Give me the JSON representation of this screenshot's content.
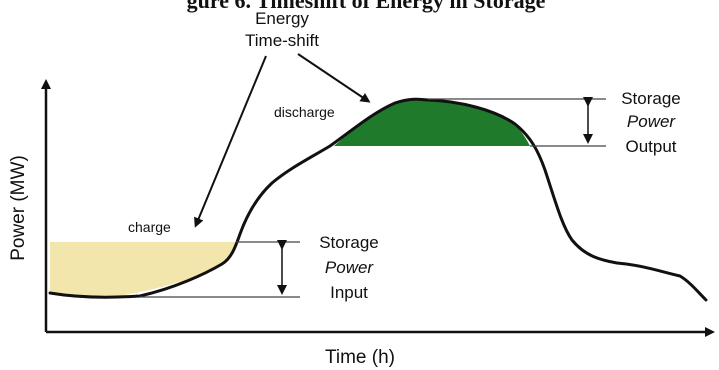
{
  "title_partial": "gure 6. Timeshift of Energy in Storage",
  "annotations": {
    "energy_line1": "Energy",
    "energy_line2": "Time-shift",
    "discharge": "discharge",
    "charge": "charge",
    "storage_out_line1": "Storage",
    "storage_out_line2": "Power",
    "storage_out_line3": "Output",
    "storage_in_line1": "Storage",
    "storage_in_line2": "Power",
    "storage_in_line3": "Input"
  },
  "axes": {
    "xlabel": "Time (h)",
    "ylabel": "Power (MW)"
  },
  "colors": {
    "curve": "#111111",
    "charge_fill": "#f3e6ad",
    "discharge_fill": "#1f7a2c",
    "guide_lines": "#444444"
  }
}
